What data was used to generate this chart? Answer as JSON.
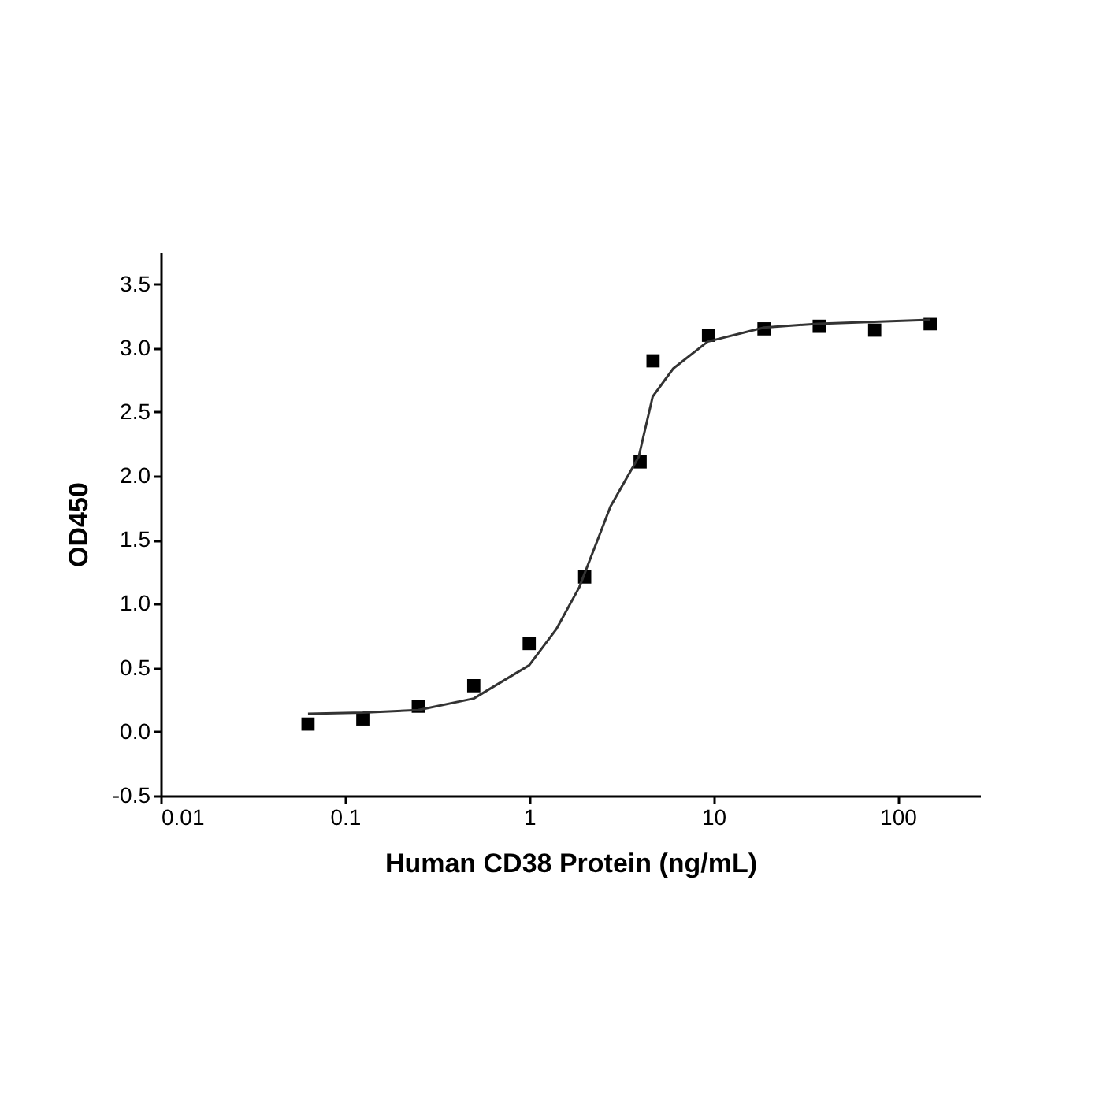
{
  "chart_data": {
    "type": "scatter",
    "xlabel": "Human CD38 Protein (ng/mL)",
    "ylabel": "OD450",
    "log": "x",
    "grid": false,
    "marker": "square",
    "xlim": [
      0.01,
      280
    ],
    "xticks": [
      0.01,
      0.1,
      1,
      10,
      100
    ],
    "ylim": [
      -0.5,
      3.75
    ],
    "yticks": [
      {
        "value": -0.5,
        "label": "-0.5"
      },
      {
        "value": 0,
        "label": "0.0"
      },
      {
        "value": 0.5,
        "label": "0.5"
      },
      {
        "value": 1,
        "label": "1.0"
      },
      {
        "value": 1.5,
        "label": "1.5"
      },
      {
        "value": 2,
        "label": "2.0"
      },
      {
        "value": 2.5,
        "label": "2.5"
      },
      {
        "value": 3,
        "label": "3.0"
      },
      {
        "value": 3.5,
        "label": "3.5"
      }
    ],
    "series": [
      {
        "color": "#000000",
        "x": [
          0.063,
          0.125,
          0.25,
          0.5,
          1,
          2,
          4,
          4.7,
          9.4,
          18.8,
          37.5,
          75,
          150
        ],
        "values": [
          0.06,
          0.1,
          0.2,
          0.36,
          0.69,
          1.21,
          2.11,
          2.9,
          3.1,
          3.15,
          3.17,
          3.14,
          3.19
        ]
      },
      {
        "type": "line",
        "color": "#333333",
        "line_style": "solid",
        "marker": "none",
        "x": [
          0.063,
          0.125,
          0.25,
          0.5,
          1,
          1.4,
          1.87,
          2.76,
          3.93,
          4.68,
          6.05,
          9.3,
          18.8,
          37,
          150
        ],
        "values": [
          0.14,
          0.15,
          0.17,
          0.26,
          0.52,
          0.8,
          1.13,
          1.76,
          2.15,
          2.62,
          2.84,
          3.05,
          3.16,
          3.19,
          3.22
        ]
      }
    ]
  }
}
